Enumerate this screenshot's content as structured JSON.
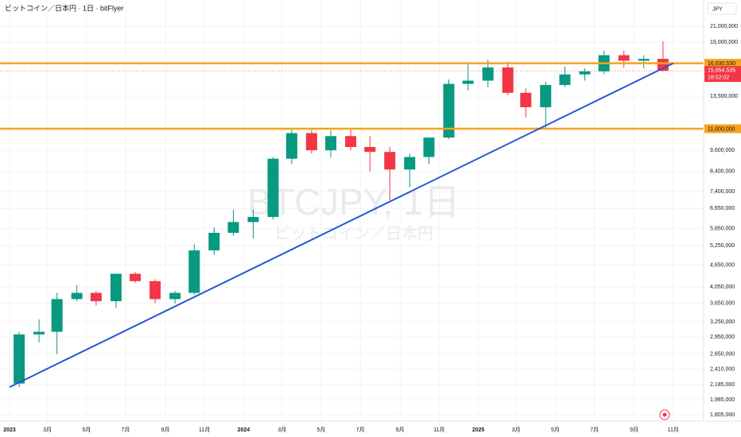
{
  "chart_data": {
    "type": "candlestick",
    "title": "ビットコイン／日本円 · 1日 · bitFlyer",
    "currency": "JPY",
    "watermark": "BTCJPY, 1日",
    "watermark_subtitle": "ビットコイン／日本円",
    "log_scale": true,
    "grid": true,
    "up_color": "#089981",
    "down_color": "#f23645",
    "xlim": [
      "2022-12",
      "2025-12"
    ],
    "xticks": [
      {
        "value": "2023-01",
        "label": "2023"
      },
      {
        "value": "2023-03",
        "label": "3月"
      },
      {
        "value": "2023-05",
        "label": "5月"
      },
      {
        "value": "2023-07",
        "label": "7月"
      },
      {
        "value": "2023-09",
        "label": "9月"
      },
      {
        "value": "2023-11",
        "label": "11月"
      },
      {
        "value": "2024-01",
        "label": "2024"
      },
      {
        "value": "2024-03",
        "label": "3月"
      },
      {
        "value": "2024-05",
        "label": "5月"
      },
      {
        "value": "2024-07",
        "label": "7月"
      },
      {
        "value": "2024-09",
        "label": "9月"
      },
      {
        "value": "2024-11",
        "label": "11月"
      },
      {
        "value": "2025-01",
        "label": "2025"
      },
      {
        "value": "2025-03",
        "label": "3月"
      },
      {
        "value": "2025-05",
        "label": "5月"
      },
      {
        "value": "2025-07",
        "label": "7月"
      },
      {
        "value": "2025-09",
        "label": "9月"
      },
      {
        "value": "2025-11",
        "label": "11月"
      }
    ],
    "ylim": [
      1735000,
      24800000
    ],
    "yticks": [
      {
        "value": 21000000,
        "label": "21,000,000"
      },
      {
        "value": 19000000,
        "label": "19,000,000"
      },
      {
        "value": 13500000,
        "label": "13,500,000"
      },
      {
        "value": 9600000,
        "label": "9,600,000"
      },
      {
        "value": 8400000,
        "label": "8,400,000"
      },
      {
        "value": 7400000,
        "label": "7,400,000"
      },
      {
        "value": 6650000,
        "label": "6,650,000"
      },
      {
        "value": 5850000,
        "label": "5,850,000"
      },
      {
        "value": 5250000,
        "label": "5,250,000"
      },
      {
        "value": 4650000,
        "label": "4,650,000"
      },
      {
        "value": 4050000,
        "label": "4,050,000"
      },
      {
        "value": 3650000,
        "label": "3,650,000"
      },
      {
        "value": 3250000,
        "label": "3,250,000"
      },
      {
        "value": 2950000,
        "label": "2,950,000"
      },
      {
        "value": 2650000,
        "label": "2,650,000"
      },
      {
        "value": 2410000,
        "label": "2,410,000"
      },
      {
        "value": 2185000,
        "label": "2,185,000"
      },
      {
        "value": 1985000,
        "label": "1,985,000"
      },
      {
        "value": 1805000,
        "label": "1,805,000"
      }
    ],
    "x": [
      "2023-01",
      "2023-02",
      "2023-03",
      "2023-04",
      "2023-05",
      "2023-06",
      "2023-07",
      "2023-08",
      "2023-09",
      "2023-10",
      "2023-11",
      "2023-12",
      "2024-01",
      "2024-02",
      "2024-03",
      "2024-04",
      "2024-05",
      "2024-06",
      "2024-07",
      "2024-08",
      "2024-09",
      "2024-10",
      "2024-11",
      "2024-12",
      "2025-01",
      "2025-02",
      "2025-03",
      "2025-04",
      "2025-05",
      "2025-06",
      "2025-07",
      "2025-08",
      "2025-09",
      "2025-10"
    ],
    "open": [
      2200000,
      3000000,
      3050000,
      3750000,
      3900000,
      3700000,
      4400000,
      4200000,
      3750000,
      3900000,
      5100000,
      5700000,
      6100000,
      6300000,
      9100000,
      10700000,
      9600000,
      10500000,
      9800000,
      9500000,
      8500000,
      9200000,
      10400000,
      14600000,
      14900000,
      16200000,
      13800000,
      12600000,
      14500000,
      15500000,
      15800000,
      17500000,
      16900000,
      17100000
    ],
    "high": [
      3050000,
      3300000,
      3900000,
      4100000,
      3950000,
      4400000,
      4450000,
      4250000,
      3950000,
      5300000,
      5900000,
      6600000,
      6600000,
      9200000,
      11000000,
      10900000,
      10900000,
      11000000,
      10500000,
      9800000,
      9400000,
      10400000,
      15000000,
      16500000,
      17000000,
      16800000,
      14200000,
      14800000,
      16300000,
      16100000,
      18000000,
      18000000,
      17500000,
      19100000
    ],
    "low": [
      2150000,
      2850000,
      2650000,
      3700000,
      3600000,
      3550000,
      4150000,
      3650000,
      3650000,
      3850000,
      4950000,
      5600000,
      5500000,
      6200000,
      8800000,
      9400000,
      9200000,
      9600000,
      8400000,
      7000000,
      7600000,
      8800000,
      10300000,
      14000000,
      14300000,
      13600000,
      11800000,
      11000000,
      14300000,
      14900000,
      15500000,
      16200000,
      16100000,
      15800000
    ],
    "close": [
      3000000,
      3050000,
      3750000,
      3900000,
      3700000,
      4400000,
      4200000,
      3750000,
      3900000,
      5100000,
      5700000,
      6100000,
      6300000,
      9100000,
      10700000,
      9600000,
      10500000,
      9800000,
      9500000,
      8500000,
      9200000,
      10400000,
      14600000,
      14900000,
      16200000,
      13800000,
      12600000,
      14500000,
      15500000,
      15800000,
      17500000,
      16900000,
      17100000,
      15854535
    ],
    "hlines": [
      {
        "value": 16630530,
        "value_label": "16,630,530",
        "color": "#f7a21b"
      },
      {
        "value": 11000000,
        "value_label": "11,000,000",
        "color": "#f7a21b"
      }
    ],
    "trendline": {
      "x": [
        "2023-01",
        "2025-11"
      ],
      "values": [
        2150000,
        16630530
      ],
      "color": "#2457d6"
    },
    "last_price": {
      "value": 15854535,
      "value_label": "15,854,535",
      "countdown": "18:52:02",
      "color": "#f23645"
    }
  }
}
